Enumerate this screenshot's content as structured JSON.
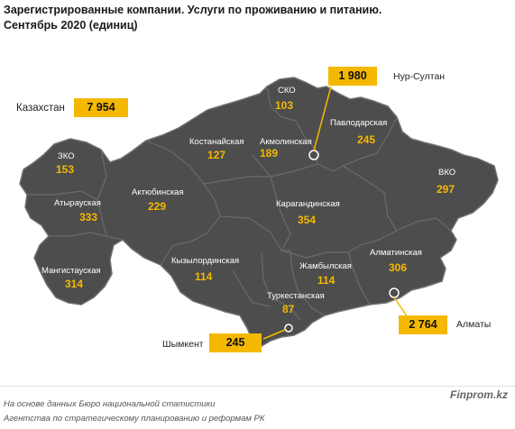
{
  "title_line1": "Зарегистрированные компании. Услуги по проживанию и питанию.",
  "title_line2": "Сентябрь 2020  (единиц)",
  "colors": {
    "map_fill": "#4d4d4d",
    "value": "#f5b800",
    "callout": "#f5b800"
  },
  "country": {
    "name": "Казахстан",
    "value": "7 954"
  },
  "regions": [
    {
      "name": "СКО",
      "value": "103"
    },
    {
      "name": "Павлодарская",
      "value": "245"
    },
    {
      "name": "Костанайская",
      "value": "127"
    },
    {
      "name": "Акмолинская",
      "value": "189"
    },
    {
      "name": "ЗКО",
      "value": "153"
    },
    {
      "name": "ВКО",
      "value": "297"
    },
    {
      "name": "Атырауская",
      "value": "333"
    },
    {
      "name": "Актюбинская",
      "value": "229"
    },
    {
      "name": "Карагандинская",
      "value": "354"
    },
    {
      "name": "Мангистауская",
      "value": "314"
    },
    {
      "name": "Кызылординская",
      "value": "114"
    },
    {
      "name": "Алматинская",
      "value": "306"
    },
    {
      "name": "Жамбылская",
      "value": "114"
    },
    {
      "name": "Туркестанская",
      "value": "87"
    }
  ],
  "cities": [
    {
      "name": "Нур-Султан",
      "value": "1 980"
    },
    {
      "name": "Алматы",
      "value": "2 764"
    },
    {
      "name": "Шымкент",
      "value": "245"
    }
  ],
  "footer_line1": "На основе данных  Бюро национальной статистики",
  "footer_line2": "Агентства по стратегическому планированию и реформам РК",
  "brand": "Finprom.kz"
}
